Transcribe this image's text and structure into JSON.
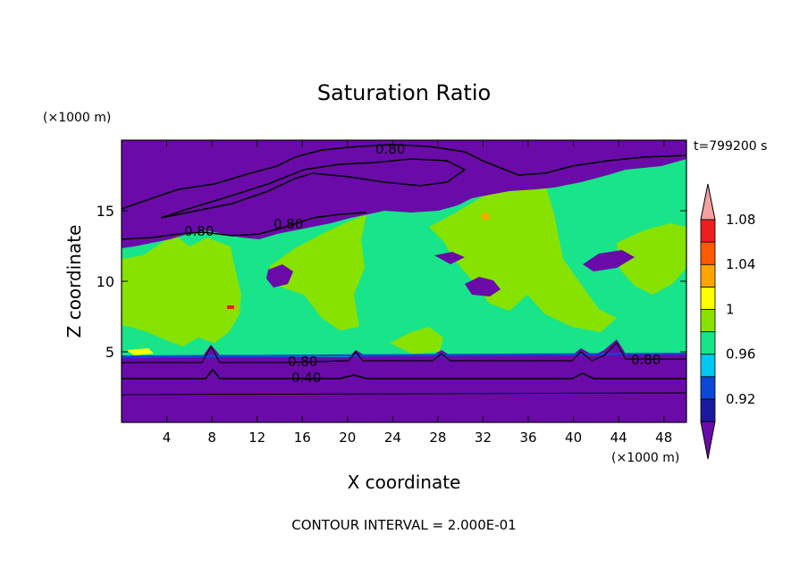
{
  "chart_data": {
    "type": "heatmap",
    "title": "Saturation Ratio",
    "xlabel": "X coordinate",
    "ylabel": "Z coordinate",
    "x_unit": "(×1000 m)",
    "y_unit": "(×1000 m)",
    "time_label": "t=799200 s",
    "footer": "CONTOUR INTERVAL = 2.000E-01",
    "xlim": [
      0,
      50
    ],
    "ylim": [
      0,
      20
    ],
    "x_ticks": [
      4,
      8,
      12,
      16,
      20,
      24,
      28,
      32,
      36,
      40,
      44,
      48
    ],
    "y_ticks": [
      5,
      10,
      15
    ],
    "colorbar": {
      "labels": [
        "0.92",
        "0.96",
        "1",
        "1.04",
        "1.08"
      ],
      "bands": [
        {
          "color": "#6a0aa8"
        },
        {
          "color": "#1a1a9e"
        },
        {
          "color": "#0b48d8"
        },
        {
          "color": "#00c8f0"
        },
        {
          "color": "#18e48a"
        },
        {
          "color": "#88e200"
        },
        {
          "color": "#ffff00"
        },
        {
          "color": "#ffa500"
        },
        {
          "color": "#ff5a00"
        },
        {
          "color": "#ee1e1e"
        },
        {
          "color": "#f4a0a0"
        }
      ]
    },
    "contour_labels": [
      "0.80",
      "0.80",
      "0.80",
      "0.80",
      "0.80",
      "0.80",
      "0.40"
    ]
  }
}
